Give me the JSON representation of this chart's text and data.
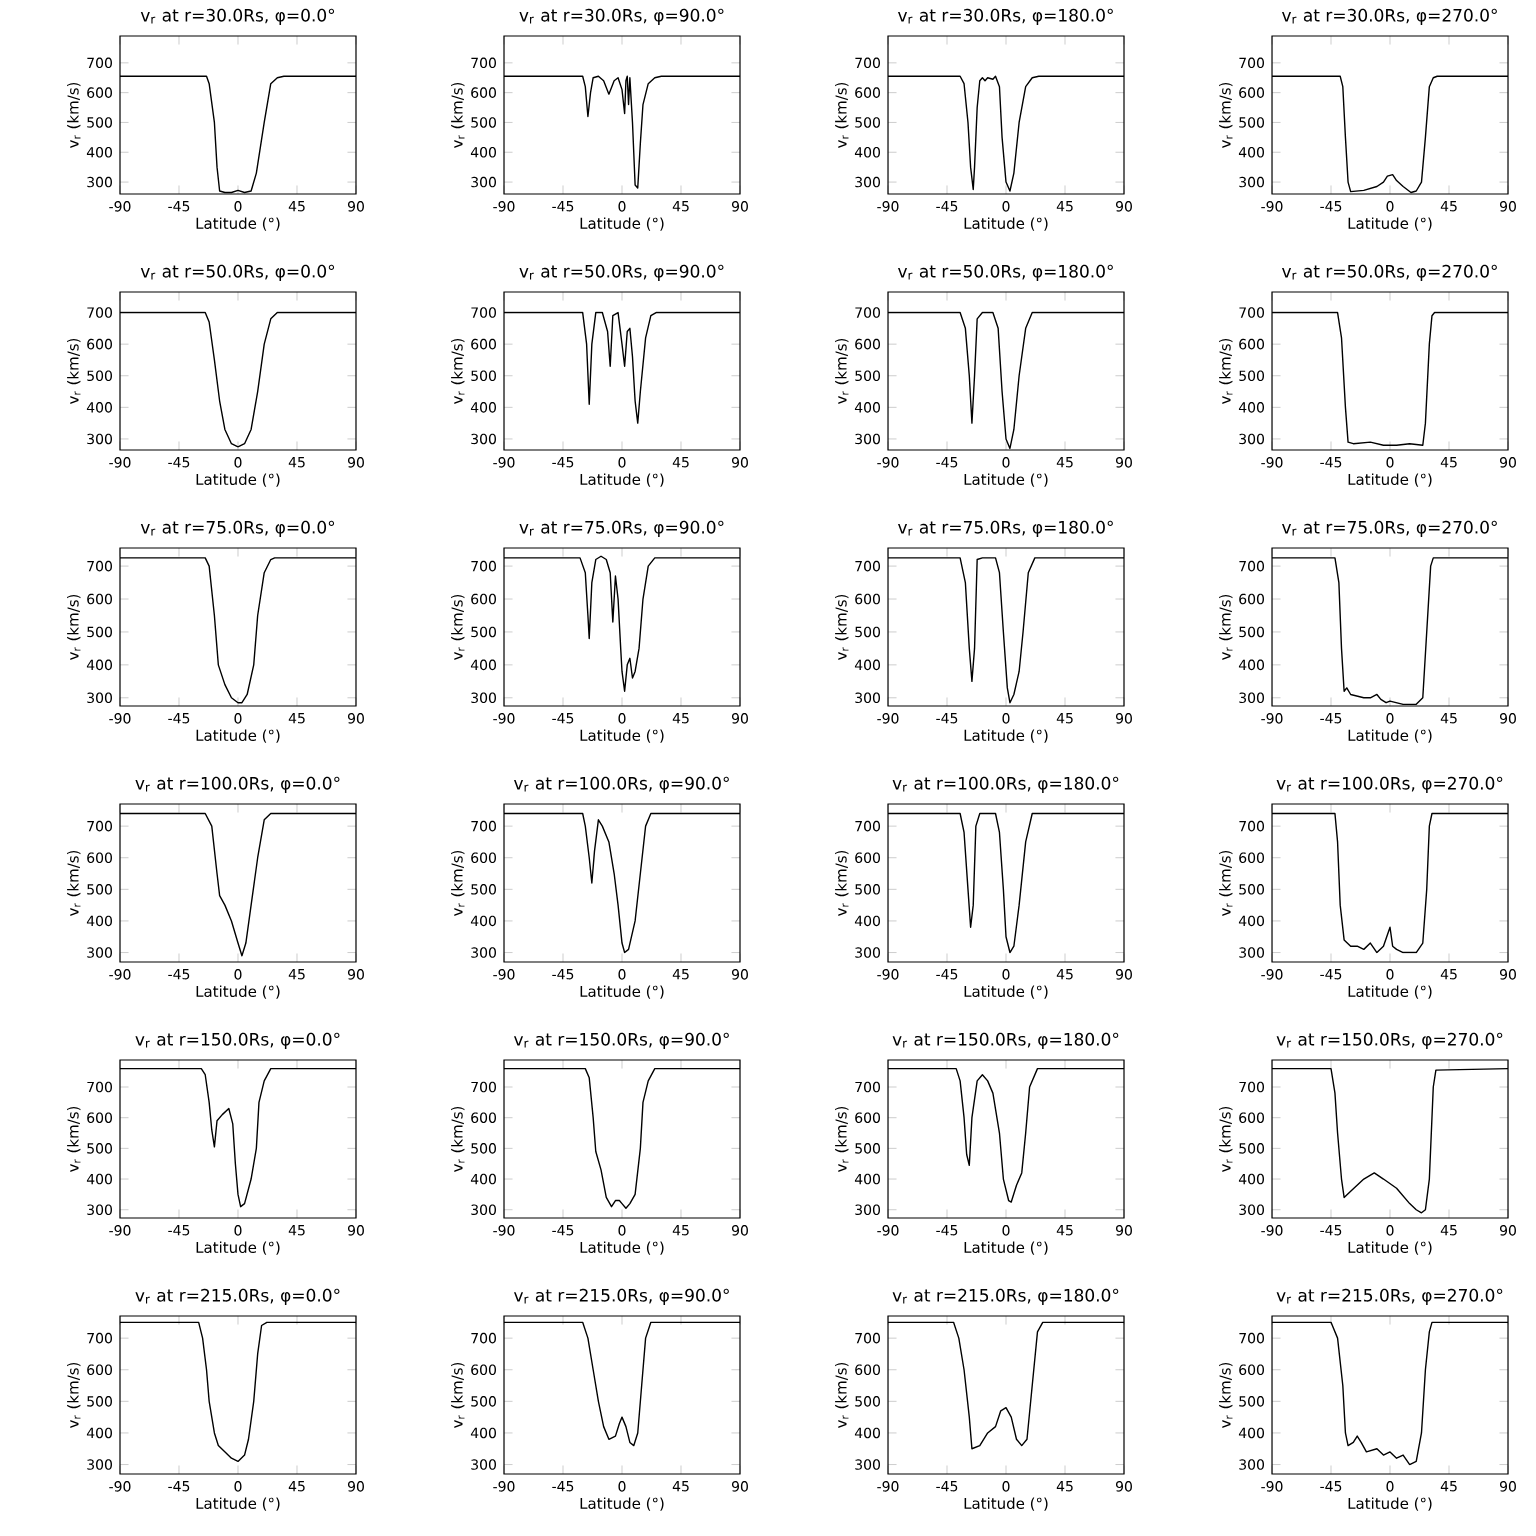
{
  "chart_data": [
    {
      "type": "line",
      "title": "v$_{r}$ at r=30.0Rs, φ=0.0°",
      "xlabel": "Latitude (°)",
      "ylabel": "v$_{r}$ (km/s)",
      "color": "#000000",
      "xlim": [
        -90,
        90
      ],
      "ylim": [
        260,
        790
      ],
      "xticks": [
        -90,
        -45,
        0,
        45,
        90
      ],
      "yticks": [
        300,
        400,
        500,
        600,
        700
      ],
      "x": [
        -90,
        -24,
        -22,
        -18,
        -16,
        -14,
        -10,
        -5,
        0,
        5,
        10,
        14,
        20,
        25,
        30,
        35,
        90
      ],
      "values": [
        655,
        655,
        630,
        500,
        350,
        270,
        265,
        265,
        272,
        265,
        270,
        330,
        500,
        630,
        650,
        655,
        655
      ]
    },
    {
      "type": "line",
      "title": "v$_{r}$ at r=30.0Rs, φ=90.0°",
      "xlabel": "Latitude (°)",
      "ylabel": "v$_{r}$ (km/s)",
      "color": "#000000",
      "xlim": [
        -90,
        90
      ],
      "ylim": [
        260,
        790
      ],
      "xticks": [
        -90,
        -45,
        0,
        45,
        90
      ],
      "yticks": [
        300,
        400,
        500,
        600,
        700
      ],
      "x": [
        -90,
        -30,
        -28,
        -26,
        -24,
        -22,
        -18,
        -14,
        -10,
        -6,
        -3,
        0,
        2,
        3,
        4,
        5,
        6,
        8,
        10,
        12,
        14,
        16,
        20,
        25,
        30,
        90
      ],
      "values": [
        655,
        655,
        620,
        520,
        600,
        650,
        655,
        640,
        595,
        640,
        650,
        610,
        530,
        640,
        655,
        560,
        650,
        500,
        290,
        280,
        430,
        560,
        630,
        650,
        655,
        655
      ]
    },
    {
      "type": "line",
      "title": "v$_{r}$ at r=30.0Rs, φ=180.0°",
      "xlabel": "Latitude (°)",
      "ylabel": "v$_{r}$ (km/s)",
      "color": "#000000",
      "xlim": [
        -90,
        90
      ],
      "ylim": [
        260,
        790
      ],
      "xticks": [
        -90,
        -45,
        0,
        45,
        90
      ],
      "yticks": [
        300,
        400,
        500,
        600,
        700
      ],
      "x": [
        -90,
        -35,
        -32,
        -29,
        -27,
        -25,
        -24,
        -22,
        -20,
        -18,
        -16,
        -14,
        -10,
        -8,
        -5,
        -3,
        0,
        3,
        6,
        10,
        15,
        20,
        25,
        90
      ],
      "values": [
        655,
        655,
        630,
        500,
        350,
        275,
        350,
        550,
        640,
        650,
        640,
        650,
        645,
        655,
        620,
        450,
        300,
        270,
        330,
        500,
        620,
        650,
        655,
        655
      ]
    },
    {
      "type": "line",
      "title": "v$_{r}$ at r=30.0Rs, φ=270.0°",
      "xlabel": "Latitude (°)",
      "ylabel": "v$_{r}$ (km/s)",
      "color": "#000000",
      "xlim": [
        -90,
        90
      ],
      "ylim": [
        260,
        790
      ],
      "xticks": [
        -90,
        -45,
        0,
        45,
        90
      ],
      "yticks": [
        300,
        400,
        500,
        600,
        700
      ],
      "x": [
        -90,
        -38,
        -36,
        -34,
        -32,
        -30,
        -20,
        -10,
        -5,
        -2,
        2,
        5,
        10,
        16,
        20,
        24,
        27,
        30,
        33,
        36,
        90
      ],
      "values": [
        655,
        655,
        620,
        450,
        300,
        268,
        272,
        285,
        300,
        320,
        325,
        305,
        285,
        265,
        270,
        300,
        450,
        620,
        650,
        655,
        655
      ]
    },
    {
      "type": "line",
      "title": "v$_{r}$ at r=50.0Rs, φ=0.0°",
      "xlabel": "Latitude (°)",
      "ylabel": "v$_{r}$ (km/s)",
      "color": "#000000",
      "xlim": [
        -90,
        90
      ],
      "ylim": [
        265,
        765
      ],
      "xticks": [
        -90,
        -45,
        0,
        45,
        90
      ],
      "yticks": [
        300,
        400,
        500,
        600,
        700
      ],
      "x": [
        -90,
        -25,
        -22,
        -18,
        -14,
        -10,
        -5,
        0,
        5,
        10,
        15,
        20,
        25,
        30,
        90
      ],
      "values": [
        700,
        700,
        670,
        550,
        420,
        330,
        285,
        275,
        285,
        330,
        450,
        600,
        680,
        700,
        700
      ]
    },
    {
      "type": "line",
      "title": "v$_{r}$ at r=50.0Rs, φ=90.0°",
      "xlabel": "Latitude (°)",
      "ylabel": "v$_{r}$ (km/s)",
      "color": "#000000",
      "xlim": [
        -90,
        90
      ],
      "ylim": [
        265,
        765
      ],
      "xticks": [
        -90,
        -45,
        0,
        45,
        90
      ],
      "yticks": [
        300,
        400,
        500,
        600,
        700
      ],
      "x": [
        -90,
        -30,
        -27,
        -25,
        -23,
        -20,
        -15,
        -11,
        -9,
        -7,
        -3,
        0,
        2,
        4,
        6,
        8,
        10,
        12,
        14,
        18,
        22,
        26,
        90
      ],
      "values": [
        700,
        700,
        600,
        410,
        600,
        700,
        700,
        640,
        530,
        690,
        700,
        600,
        530,
        640,
        650,
        560,
        420,
        350,
        450,
        620,
        690,
        700,
        700
      ]
    },
    {
      "type": "line",
      "title": "v$_{r}$ at r=50.0Rs, φ=180.0°",
      "xlabel": "Latitude (°)",
      "ylabel": "v$_{r}$ (km/s)",
      "color": "#000000",
      "xlim": [
        -90,
        90
      ],
      "ylim": [
        265,
        765
      ],
      "xticks": [
        -90,
        -45,
        0,
        45,
        90
      ],
      "yticks": [
        300,
        400,
        500,
        600,
        700
      ],
      "x": [
        -90,
        -35,
        -31,
        -28,
        -26,
        -24,
        -22,
        -18,
        -10,
        -6,
        -3,
        0,
        3,
        6,
        10,
        15,
        20,
        90
      ],
      "values": [
        700,
        700,
        650,
        500,
        350,
        500,
        680,
        700,
        700,
        650,
        450,
        300,
        270,
        330,
        500,
        650,
        700,
        700
      ]
    },
    {
      "type": "line",
      "title": "v$_{r}$ at r=50.0Rs, φ=270.0°",
      "xlabel": "Latitude (°)",
      "ylabel": "v$_{r}$ (km/s)",
      "color": "#000000",
      "xlim": [
        -90,
        90
      ],
      "ylim": [
        265,
        765
      ],
      "xticks": [
        -90,
        -45,
        0,
        45,
        90
      ],
      "yticks": [
        300,
        400,
        500,
        600,
        700
      ],
      "x": [
        -90,
        -40,
        -37,
        -34,
        -32,
        -28,
        -15,
        -5,
        5,
        15,
        25,
        27,
        30,
        32,
        34,
        90
      ],
      "values": [
        700,
        700,
        620,
        400,
        290,
        285,
        290,
        280,
        280,
        285,
        280,
        350,
        600,
        690,
        700,
        700
      ]
    },
    {
      "type": "line",
      "title": "v$_{r}$ at r=75.0Rs, φ=0.0°",
      "xlabel": "Latitude (°)",
      "ylabel": "v$_{r}$ (km/s)",
      "color": "#000000",
      "xlim": [
        -90,
        90
      ],
      "ylim": [
        275,
        755
      ],
      "xticks": [
        -90,
        -45,
        0,
        45,
        90
      ],
      "yticks": [
        300,
        400,
        500,
        600,
        700
      ],
      "x": [
        -90,
        -25,
        -22,
        -18,
        -15,
        -10,
        -5,
        0,
        3,
        7,
        12,
        15,
        20,
        25,
        28,
        90
      ],
      "values": [
        725,
        725,
        700,
        550,
        400,
        340,
        300,
        285,
        285,
        310,
        400,
        550,
        680,
        720,
        725,
        725
      ]
    },
    {
      "type": "line",
      "title": "v$_{r}$ at r=75.0Rs, φ=90.0°",
      "xlabel": "Latitude (°)",
      "ylabel": "v$_{r}$ (km/s)",
      "color": "#000000",
      "xlim": [
        -90,
        90
      ],
      "ylim": [
        275,
        755
      ],
      "xticks": [
        -90,
        -45,
        0,
        45,
        90
      ],
      "yticks": [
        300,
        400,
        500,
        600,
        700
      ],
      "x": [
        -90,
        -32,
        -28,
        -26,
        -25,
        -23,
        -20,
        -16,
        -12,
        -9,
        -7,
        -5,
        -3,
        -1,
        0,
        2,
        4,
        6,
        8,
        10,
        13,
        16,
        20,
        25,
        90
      ],
      "values": [
        725,
        725,
        680,
        550,
        480,
        650,
        720,
        730,
        720,
        680,
        530,
        670,
        600,
        450,
        380,
        320,
        400,
        420,
        360,
        380,
        450,
        600,
        700,
        725,
        725
      ]
    },
    {
      "type": "line",
      "title": "v$_{r}$ at r=75.0Rs, φ=180.0°",
      "xlabel": "Latitude (°)",
      "ylabel": "v$_{r}$ (km/s)",
      "color": "#000000",
      "xlim": [
        -90,
        90
      ],
      "ylim": [
        275,
        755
      ],
      "xticks": [
        -90,
        -45,
        0,
        45,
        90
      ],
      "yticks": [
        300,
        400,
        500,
        600,
        700
      ],
      "x": [
        -90,
        -35,
        -31,
        -28,
        -26,
        -24,
        -22,
        -18,
        -8,
        -5,
        -2,
        1,
        3,
        6,
        10,
        13,
        17,
        22,
        90
      ],
      "values": [
        725,
        725,
        650,
        450,
        350,
        450,
        720,
        725,
        725,
        680,
        500,
        330,
        285,
        310,
        380,
        500,
        680,
        725,
        725
      ]
    },
    {
      "type": "line",
      "title": "v$_{r}$ at r=75.0Rs, φ=270.0°",
      "xlabel": "Latitude (°)",
      "ylabel": "v$_{r}$ (km/s)",
      "color": "#000000",
      "xlim": [
        -90,
        90
      ],
      "ylim": [
        275,
        755
      ],
      "xticks": [
        -90,
        -45,
        0,
        45,
        90
      ],
      "yticks": [
        300,
        400,
        500,
        600,
        700
      ],
      "x": [
        -90,
        -42,
        -39,
        -37,
        -35,
        -33,
        -30,
        -20,
        -15,
        -10,
        -7,
        -3,
        0,
        5,
        10,
        20,
        25,
        28,
        31,
        33,
        90
      ],
      "values": [
        725,
        725,
        650,
        450,
        320,
        330,
        310,
        300,
        300,
        310,
        295,
        285,
        290,
        285,
        280,
        280,
        300,
        500,
        700,
        725,
        725
      ]
    },
    {
      "type": "line",
      "title": "v$_{r}$ at r=100.0Rs, φ=0.0°",
      "xlabel": "Latitude (°)",
      "ylabel": "v$_{r}$ (km/s)",
      "color": "#000000",
      "xlim": [
        -90,
        90
      ],
      "ylim": [
        270,
        770
      ],
      "xticks": [
        -90,
        -45,
        0,
        45,
        90
      ],
      "yticks": [
        300,
        400,
        500,
        600,
        700
      ],
      "x": [
        -90,
        -25,
        -20,
        -16,
        -14,
        -10,
        -5,
        0,
        3,
        6,
        10,
        15,
        20,
        25,
        90
      ],
      "values": [
        740,
        740,
        700,
        550,
        480,
        450,
        400,
        330,
        290,
        330,
        450,
        600,
        720,
        740,
        740
      ]
    },
    {
      "type": "line",
      "title": "v$_{r}$ at r=100.0Rs, φ=90.0°",
      "xlabel": "Latitude (°)",
      "ylabel": "v$_{r}$ (km/s)",
      "color": "#000000",
      "xlim": [
        -90,
        90
      ],
      "ylim": [
        270,
        770
      ],
      "xticks": [
        -90,
        -45,
        0,
        45,
        90
      ],
      "yticks": [
        300,
        400,
        500,
        600,
        700
      ],
      "x": [
        -90,
        -30,
        -28,
        -25,
        -23,
        -21,
        -18,
        -15,
        -10,
        -6,
        -3,
        0,
        2,
        5,
        10,
        14,
        18,
        22,
        90
      ],
      "values": [
        740,
        740,
        700,
        600,
        520,
        620,
        720,
        700,
        650,
        550,
        450,
        330,
        300,
        310,
        400,
        550,
        700,
        740,
        740
      ]
    },
    {
      "type": "line",
      "title": "v$_{r}$ at r=100.0Rs, φ=180.0°",
      "xlabel": "Latitude (°)",
      "ylabel": "v$_{r}$ (km/s)",
      "color": "#000000",
      "xlim": [
        -90,
        90
      ],
      "ylim": [
        270,
        770
      ],
      "xticks": [
        -90,
        -45,
        0,
        45,
        90
      ],
      "yticks": [
        300,
        400,
        500,
        600,
        700
      ],
      "x": [
        -90,
        -35,
        -32,
        -29,
        -27,
        -25,
        -23,
        -20,
        -8,
        -5,
        -2,
        0,
        3,
        6,
        10,
        15,
        20,
        90
      ],
      "values": [
        740,
        740,
        680,
        500,
        380,
        450,
        700,
        740,
        740,
        680,
        500,
        350,
        300,
        320,
        450,
        650,
        740,
        740
      ]
    },
    {
      "type": "line",
      "title": "v$_{r}$ at r=100.0Rs, φ=270.0°",
      "xlabel": "Latitude (°)",
      "ylabel": "v$_{r}$ (km/s)",
      "color": "#000000",
      "xlim": [
        -90,
        90
      ],
      "ylim": [
        270,
        770
      ],
      "xticks": [
        -90,
        -45,
        0,
        45,
        90
      ],
      "yticks": [
        300,
        400,
        500,
        600,
        700
      ],
      "x": [
        -90,
        -42,
        -40,
        -38,
        -35,
        -30,
        -25,
        -20,
        -15,
        -10,
        -5,
        0,
        2,
        5,
        10,
        20,
        25,
        28,
        30,
        32,
        90
      ],
      "values": [
        740,
        740,
        650,
        450,
        340,
        320,
        320,
        310,
        330,
        300,
        320,
        380,
        320,
        310,
        300,
        300,
        330,
        500,
        700,
        740,
        740
      ]
    },
    {
      "type": "line",
      "title": "v$_{r}$ at r=150.0Rs, φ=0.0°",
      "xlabel": "Latitude (°)",
      "ylabel": "v$_{r}$ (km/s)",
      "color": "#000000",
      "xlim": [
        -90,
        90
      ],
      "ylim": [
        273,
        788
      ],
      "xticks": [
        -90,
        -45,
        0,
        45,
        90
      ],
      "yticks": [
        300,
        400,
        500,
        600,
        700
      ],
      "x": [
        -90,
        -28,
        -25,
        -22,
        -20,
        -18,
        -16,
        -12,
        -7,
        -4,
        -2,
        0,
        2,
        5,
        10,
        14,
        16,
        20,
        25,
        90
      ],
      "values": [
        760,
        760,
        740,
        650,
        560,
        505,
        590,
        610,
        630,
        580,
        450,
        350,
        310,
        320,
        400,
        500,
        650,
        720,
        760,
        760
      ]
    },
    {
      "type": "line",
      "title": "v$_{r}$ at r=150.0Rs, φ=90.0°",
      "xlabel": "Latitude (°)",
      "ylabel": "v$_{r}$ (km/s)",
      "color": "#000000",
      "xlim": [
        -90,
        90
      ],
      "ylim": [
        273,
        788
      ],
      "xticks": [
        -90,
        -45,
        0,
        45,
        90
      ],
      "yticks": [
        300,
        400,
        500,
        600,
        700
      ],
      "x": [
        -90,
        -28,
        -25,
        -22,
        -20,
        -16,
        -12,
        -8,
        -5,
        -2,
        0,
        3,
        6,
        10,
        14,
        16,
        20,
        25,
        90
      ],
      "values": [
        760,
        760,
        730,
        600,
        490,
        430,
        340,
        310,
        330,
        330,
        320,
        305,
        320,
        350,
        500,
        650,
        720,
        760,
        760
      ]
    },
    {
      "type": "line",
      "title": "v$_{r}$ at r=150.0Rs, φ=180.0°",
      "xlabel": "Latitude (°)",
      "ylabel": "v$_{r}$ (km/s)",
      "color": "#000000",
      "xlim": [
        -90,
        90
      ],
      "ylim": [
        273,
        788
      ],
      "xticks": [
        -90,
        -45,
        0,
        45,
        90
      ],
      "yticks": [
        300,
        400,
        500,
        600,
        700
      ],
      "x": [
        -90,
        -38,
        -35,
        -32,
        -30,
        -28,
        -26,
        -22,
        -18,
        -14,
        -10,
        -5,
        -2,
        2,
        4,
        8,
        12,
        15,
        18,
        24,
        90
      ],
      "values": [
        760,
        760,
        720,
        600,
        480,
        445,
        600,
        720,
        740,
        720,
        680,
        550,
        400,
        330,
        325,
        380,
        420,
        550,
        700,
        760,
        760
      ]
    },
    {
      "type": "line",
      "title": "v$_{r}$ at r=150.0Rs, φ=270.0°",
      "xlabel": "Latitude (°)",
      "ylabel": "v$_{r}$ (km/s)",
      "color": "#000000",
      "xlim": [
        -90,
        90
      ],
      "ylim": [
        273,
        788
      ],
      "xticks": [
        -90,
        -45,
        0,
        45,
        90
      ],
      "yticks": [
        300,
        400,
        500,
        600,
        700
      ],
      "x": [
        -90,
        -45,
        -42,
        -40,
        -37,
        -35,
        -30,
        -20,
        -12,
        -5,
        5,
        15,
        20,
        24,
        27,
        30,
        33,
        35,
        90
      ],
      "values": [
        760,
        760,
        680,
        550,
        400,
        340,
        360,
        400,
        420,
        400,
        370,
        320,
        300,
        290,
        300,
        400,
        700,
        755,
        760
      ]
    },
    {
      "type": "line",
      "title": "v$_{r}$ at r=215.0Rs, φ=0.0°",
      "xlabel": "Latitude (°)",
      "ylabel": "v$_{r}$ (km/s)",
      "color": "#000000",
      "xlim": [
        -90,
        90
      ],
      "ylim": [
        270,
        770
      ],
      "xticks": [
        -90,
        -45,
        0,
        45,
        90
      ],
      "yticks": [
        300,
        400,
        500,
        600,
        700
      ],
      "x": [
        -90,
        -30,
        -27,
        -24,
        -22,
        -18,
        -15,
        -10,
        -5,
        0,
        5,
        8,
        12,
        15,
        18,
        22,
        90
      ],
      "values": [
        750,
        750,
        700,
        600,
        500,
        400,
        360,
        340,
        320,
        310,
        330,
        380,
        500,
        650,
        740,
        750,
        750
      ]
    },
    {
      "type": "line",
      "title": "v$_{r}$ at r=215.0Rs, φ=90.0°",
      "xlabel": "Latitude (°)",
      "ylabel": "v$_{r}$ (km/s)",
      "color": "#000000",
      "xlim": [
        -90,
        90
      ],
      "ylim": [
        270,
        770
      ],
      "xticks": [
        -90,
        -45,
        0,
        45,
        90
      ],
      "yticks": [
        300,
        400,
        500,
        600,
        700
      ],
      "x": [
        -90,
        -30,
        -26,
        -22,
        -18,
        -14,
        -10,
        -5,
        -2,
        0,
        3,
        6,
        9,
        12,
        15,
        18,
        22,
        90
      ],
      "values": [
        750,
        750,
        700,
        600,
        500,
        420,
        380,
        390,
        430,
        450,
        420,
        370,
        360,
        400,
        550,
        700,
        750,
        750
      ]
    },
    {
      "type": "line",
      "title": "v$_{r}$ at r=215.0Rs, φ=180.0°",
      "xlabel": "Latitude (°)",
      "ylabel": "v$_{r}$ (km/s)",
      "color": "#000000",
      "xlim": [
        -90,
        90
      ],
      "ylim": [
        270,
        770
      ],
      "xticks": [
        -90,
        -45,
        0,
        45,
        90
      ],
      "yticks": [
        300,
        400,
        500,
        600,
        700
      ],
      "x": [
        -90,
        -40,
        -36,
        -32,
        -28,
        -26,
        -20,
        -14,
        -8,
        -4,
        0,
        4,
        8,
        12,
        16,
        20,
        24,
        28,
        90
      ],
      "values": [
        750,
        750,
        700,
        600,
        450,
        350,
        360,
        400,
        420,
        470,
        480,
        450,
        380,
        360,
        380,
        550,
        720,
        750,
        750
      ]
    },
    {
      "type": "line",
      "title": "v$_{r}$ at r=215.0Rs, φ=270.0°",
      "xlabel": "Latitude (°)",
      "ylabel": "v$_{r}$ (km/s)",
      "color": "#000000",
      "xlim": [
        -90,
        90
      ],
      "ylim": [
        270,
        770
      ],
      "xticks": [
        -90,
        -45,
        0,
        45,
        90
      ],
      "yticks": [
        300,
        400,
        500,
        600,
        700
      ],
      "x": [
        -90,
        -45,
        -40,
        -36,
        -34,
        -32,
        -28,
        -25,
        -22,
        -18,
        -10,
        -5,
        0,
        5,
        10,
        15,
        20,
        24,
        27,
        30,
        32,
        90
      ],
      "values": [
        750,
        750,
        700,
        550,
        400,
        360,
        370,
        390,
        370,
        340,
        350,
        330,
        340,
        320,
        330,
        300,
        310,
        400,
        600,
        720,
        750,
        750
      ]
    }
  ]
}
